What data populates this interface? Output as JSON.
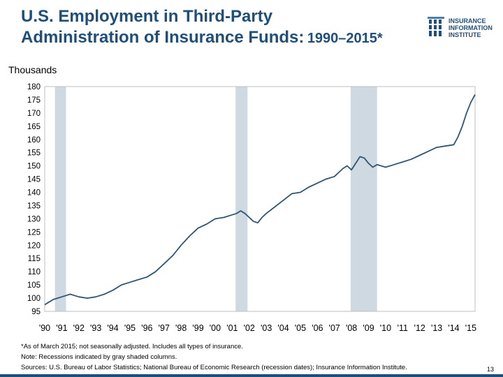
{
  "header": {
    "title_line1": "U.S. Employment in Third-Party",
    "title_line2": "Administration of Insurance Funds:",
    "title_years": "1990–2015*",
    "logo_line1": "INSURANCE",
    "logo_line2": "INFORMATION",
    "logo_line3": "INSTITUTE"
  },
  "colors": {
    "title": "#1f4e79",
    "line": "#2e5573",
    "recession": "#cfd9e1"
  },
  "chart_data": {
    "type": "line",
    "title": "U.S. Employment in Third-Party Administration of Insurance Funds: 1990–2015*",
    "ylabel": "Thousands",
    "xlabel": "",
    "ylim": [
      95,
      180
    ],
    "xlim": [
      1990,
      2015.25
    ],
    "yticks": [
      95,
      100,
      105,
      110,
      115,
      120,
      125,
      130,
      135,
      140,
      145,
      150,
      155,
      160,
      165,
      170,
      175,
      180
    ],
    "xtick_labels": [
      "'90",
      "'91",
      "'92",
      "'93",
      "'94",
      "'95",
      "'96",
      "'97",
      "'98",
      "'99",
      "'00",
      "'01",
      "'02",
      "'03",
      "'04",
      "'05",
      "'06",
      "'07",
      "'08",
      "'09",
      "'10",
      "'11",
      "'12",
      "'13",
      "'14",
      "'15"
    ],
    "recessions": [
      [
        1990.6,
        1991.25
      ],
      [
        2001.2,
        2001.9
      ],
      [
        2007.95,
        2009.5
      ]
    ],
    "grid": false,
    "series": [
      {
        "x": [
          1990.0,
          1990.25,
          1990.5,
          1990.75,
          1991.0,
          1991.25,
          1991.5,
          1991.75,
          1992.0,
          1992.5,
          1993.0,
          1993.5,
          1994.0,
          1994.5,
          1995.0,
          1995.5,
          1996.0,
          1996.5,
          1997.0,
          1997.5,
          1998.0,
          1998.5,
          1999.0,
          1999.5,
          2000.0,
          2000.5,
          2001.0,
          2001.25,
          2001.5,
          2001.75,
          2002.0,
          2002.25,
          2002.5,
          2002.75,
          2003.0,
          2003.5,
          2004.0,
          2004.5,
          2005.0,
          2005.5,
          2006.0,
          2006.5,
          2007.0,
          2007.25,
          2007.5,
          2007.75,
          2008.0,
          2008.25,
          2008.5,
          2008.75,
          2009.0,
          2009.25,
          2009.5,
          2009.75,
          2010.0,
          2010.5,
          2011.0,
          2011.5,
          2012.0,
          2012.5,
          2013.0,
          2013.5,
          2014.0,
          2014.25,
          2014.5,
          2014.75,
          2015.0,
          2015.25
        ],
        "values": [
          97.5,
          98.5,
          99.5,
          100,
          100.5,
          101,
          101.5,
          101,
          100.5,
          100,
          100.5,
          101.5,
          103,
          105,
          106,
          107,
          108,
          110,
          113,
          116,
          120,
          123.5,
          126.5,
          128,
          130,
          130.5,
          131.5,
          132,
          133,
          132,
          130.5,
          129,
          128.5,
          130.5,
          132,
          134.5,
          137,
          139.5,
          140,
          142,
          143.5,
          145,
          146,
          147.5,
          149,
          150,
          148.5,
          151,
          153.5,
          153,
          151,
          149.5,
          150.5,
          150,
          149.5,
          150.5,
          151.5,
          152.5,
          154,
          155.5,
          157,
          157.5,
          158,
          161,
          165,
          170,
          174,
          177
        ]
      }
    ]
  },
  "notes": {
    "line1": "*As of March  2015; not seasonally adjusted. Includes all types of insurance.",
    "line2": "Note: Recessions indicated by gray shaded columns.",
    "line3": "Sources: U.S. Bureau of Labor Statistics;  National Bureau of Economic Research (recession dates); Insurance Information Institute."
  },
  "page_number": "13"
}
